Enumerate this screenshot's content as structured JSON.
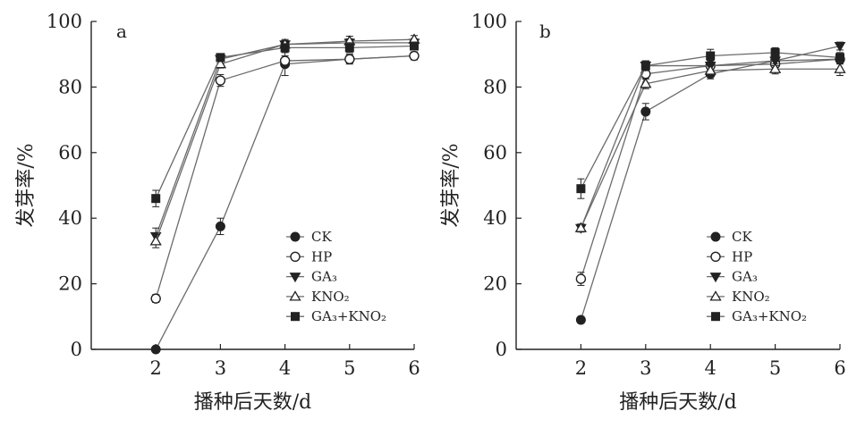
{
  "legend": [
    {
      "series": "ck",
      "label": "CK",
      "marker": "circle-filled"
    },
    {
      "series": "hp",
      "label": "HP",
      "marker": "circle-open"
    },
    {
      "series": "ga3",
      "label": "GA₃",
      "marker": "triangle-down-filled"
    },
    {
      "series": "kno2",
      "label": "KNO₂",
      "marker": "triangle-up-open"
    },
    {
      "series": "ga3kno2",
      "label": "GA₃+KNO₂",
      "marker": "square-filled"
    }
  ],
  "chart_data": [
    {
      "type": "line",
      "panel": "a",
      "xlabel": "播种后天数/d",
      "ylabel": "发芽率/%",
      "xlim": [
        1,
        6
      ],
      "ylim": [
        0,
        100
      ],
      "xticks": [
        2,
        3,
        4,
        5,
        6
      ],
      "yticks": [
        0,
        20,
        40,
        60,
        80,
        100
      ],
      "grid": false,
      "legend_position": "bottom-right",
      "x": [
        2,
        3,
        4,
        5,
        6
      ],
      "series": [
        {
          "key": "ck",
          "name": "CK",
          "marker": "circle-filled",
          "values": [
            0,
            37.5,
            87,
            88.5,
            89.5
          ],
          "errors": [
            0,
            2.5,
            3.5,
            1.5,
            1.2
          ]
        },
        {
          "key": "hp",
          "name": "HP",
          "marker": "circle-open",
          "values": [
            15.5,
            82,
            88,
            88.5,
            89.5
          ],
          "errors": [
            1.2,
            1.8,
            1.5,
            1.2,
            1.2
          ]
        },
        {
          "key": "ga3",
          "name": "GA₃",
          "marker": "triangle-down-filled",
          "values": [
            34.5,
            88.5,
            93,
            93.5,
            93.5
          ],
          "errors": [
            2.5,
            1.2,
            1.2,
            1.2,
            1.2
          ]
        },
        {
          "key": "kno2",
          "name": "KNO₂",
          "marker": "triangle-up-open",
          "values": [
            33,
            87,
            93,
            94,
            94.5
          ],
          "errors": [
            2.0,
            1.2,
            1.5,
            1.5,
            1.2
          ]
        },
        {
          "key": "ga3kno2",
          "name": "GA₃+KNO₂",
          "marker": "square-filled",
          "values": [
            46,
            89,
            92,
            92,
            92.5
          ],
          "errors": [
            2.5,
            1.2,
            1.2,
            1.5,
            1.2
          ]
        }
      ]
    },
    {
      "type": "line",
      "panel": "b",
      "xlabel": "播种后天数/d",
      "ylabel": "发芽率/%",
      "xlim": [
        1,
        6
      ],
      "ylim": [
        0,
        100
      ],
      "xticks": [
        2,
        3,
        4,
        5,
        6
      ],
      "yticks": [
        0,
        20,
        40,
        60,
        80,
        100
      ],
      "grid": false,
      "legend_position": "bottom-right",
      "x": [
        2,
        3,
        4,
        5,
        6
      ],
      "series": [
        {
          "key": "ck",
          "name": "CK",
          "marker": "circle-filled",
          "values": [
            9,
            72.5,
            84,
            88,
            88.5
          ],
          "errors": [
            1.0,
            2.5,
            1.5,
            1.5,
            1.2
          ]
        },
        {
          "key": "hp",
          "name": "HP",
          "marker": "circle-open",
          "values": [
            21.5,
            84,
            86.5,
            87,
            88.5
          ],
          "errors": [
            2.0,
            1.5,
            1.5,
            1.5,
            1.5
          ]
        },
        {
          "key": "ga3",
          "name": "GA₃",
          "marker": "triangle-down-filled",
          "values": [
            37,
            86.5,
            86.5,
            88,
            92.5
          ],
          "errors": [
            1.2,
            1.5,
            1.5,
            1.5,
            1.2
          ]
        },
        {
          "key": "kno2",
          "name": "KNO₂",
          "marker": "triangle-up-open",
          "values": [
            37,
            81,
            85,
            85.5,
            85.5
          ],
          "errors": [
            1.2,
            1.5,
            1.5,
            1.5,
            2.0
          ]
        },
        {
          "key": "ga3kno2",
          "name": "GA₃+KNO₂",
          "marker": "square-filled",
          "values": [
            49,
            86.5,
            89.5,
            90.5,
            89
          ],
          "errors": [
            3.0,
            1.5,
            2.0,
            1.5,
            1.5
          ]
        }
      ]
    }
  ]
}
